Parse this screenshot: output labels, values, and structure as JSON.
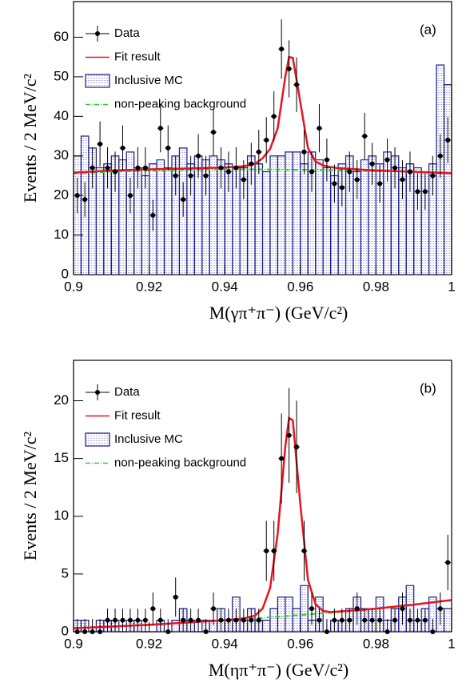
{
  "chart_data": [
    {
      "type": "mixed",
      "panel_label": "(a)",
      "xlabel": "M(γπ⁺π⁻) (GeV/c²)",
      "ylabel": "Events / 2 MeV/c²",
      "xlim": [
        0.9,
        1
      ],
      "ylim": [
        0,
        69
      ],
      "xticks": [
        0.9,
        0.92,
        0.94,
        0.96,
        0.98,
        1
      ],
      "yticks": [
        0,
        10,
        20,
        30,
        40,
        50,
        60
      ],
      "legend": "upper left",
      "data": {
        "name": "Data",
        "color": "#000000",
        "x": [
          0.901,
          0.903,
          0.905,
          0.907,
          0.909,
          0.911,
          0.913,
          0.915,
          0.917,
          0.919,
          0.921,
          0.923,
          0.925,
          0.927,
          0.929,
          0.931,
          0.933,
          0.935,
          0.937,
          0.939,
          0.941,
          0.943,
          0.945,
          0.947,
          0.949,
          0.951,
          0.953,
          0.955,
          0.957,
          0.959,
          0.961,
          0.963,
          0.965,
          0.967,
          0.969,
          0.971,
          0.973,
          0.975,
          0.977,
          0.979,
          0.981,
          0.983,
          0.985,
          0.987,
          0.989,
          0.991,
          0.993,
          0.995,
          0.997,
          0.999
        ],
        "values": [
          20,
          19,
          27,
          33,
          27,
          26,
          32,
          20,
          27,
          27,
          15,
          37,
          32,
          25,
          19,
          25,
          30,
          25,
          36,
          27,
          26,
          27,
          24,
          28,
          31,
          34,
          40,
          57,
          52,
          48,
          31,
          26,
          37,
          29,
          23,
          22,
          26,
          24,
          35,
          28,
          23,
          29,
          27,
          24,
          26,
          21,
          21,
          25,
          30,
          34
        ],
        "errors": [
          4.5,
          4.4,
          5.2,
          5.7,
          5.2,
          5.1,
          5.7,
          4.5,
          5.2,
          5.2,
          3.9,
          6.1,
          5.7,
          5,
          4.4,
          5,
          5.5,
          5,
          6,
          5.2,
          5.1,
          5.2,
          4.9,
          5.3,
          5.6,
          5.8,
          6.3,
          7.5,
          7.2,
          6.9,
          5.6,
          5.1,
          6.1,
          5.4,
          4.8,
          4.7,
          5.1,
          4.9,
          5.9,
          5.3,
          4.8,
          5.4,
          5.2,
          4.9,
          5.1,
          4.6,
          4.6,
          5,
          5.5,
          5.8
        ]
      },
      "fit": {
        "name": "Fit result",
        "color": "#e8141e",
        "x": [
          0.9,
          0.91,
          0.92,
          0.93,
          0.94,
          0.945,
          0.948,
          0.95,
          0.952,
          0.954,
          0.956,
          0.957,
          0.958,
          0.96,
          0.962,
          0.964,
          0.966,
          0.968,
          0.97,
          0.975,
          0.98,
          0.99,
          1
        ],
        "values": [
          25.8,
          26.3,
          26.6,
          26.8,
          27.1,
          27.4,
          28.0,
          29.4,
          31.8,
          37.0,
          50.0,
          55.0,
          54.8,
          43.5,
          32.0,
          28.6,
          27.6,
          27.2,
          26.9,
          26.6,
          26.3,
          26.0,
          25.6
        ]
      },
      "mc": {
        "name": "Inclusive MC",
        "color": "#1a1a8c",
        "bins": [
          0.9,
          0.902,
          0.904,
          0.906,
          0.908,
          0.91,
          0.912,
          0.914,
          0.916,
          0.918,
          0.92,
          0.922,
          0.924,
          0.926,
          0.928,
          0.93,
          0.932,
          0.934,
          0.936,
          0.938,
          0.94,
          0.942,
          0.944,
          0.946,
          0.948,
          0.95,
          0.952,
          0.954,
          0.956,
          0.958,
          0.96,
          0.962,
          0.964,
          0.966,
          0.968,
          0.97,
          0.972,
          0.974,
          0.976,
          0.978,
          0.98,
          0.982,
          0.984,
          0.986,
          0.988,
          0.99,
          0.992,
          0.994,
          0.996,
          0.998,
          1
        ],
        "values": [
          30,
          35,
          32,
          27,
          28,
          30,
          29,
          31,
          27,
          25,
          28,
          29,
          27,
          30,
          32,
          28,
          30,
          29,
          30,
          29,
          28,
          27,
          27,
          30,
          28,
          26,
          30,
          30,
          31,
          31,
          28,
          31,
          29,
          27,
          25,
          28,
          30,
          26,
          29,
          30,
          28,
          31,
          30,
          27,
          28,
          27,
          26,
          28,
          53,
          48
        ]
      },
      "background": {
        "name": "non-peaking background",
        "color": "#33cc33",
        "x": [
          0.9,
          0.91,
          0.92,
          0.93,
          0.94,
          0.95,
          0.96,
          0.97,
          0.98,
          0.99,
          1
        ],
        "values": [
          25.6,
          26.0,
          26.3,
          26.5,
          26.6,
          26.6,
          26.5,
          26.4,
          26.2,
          26.0,
          25.8
        ]
      }
    },
    {
      "type": "mixed",
      "panel_label": "(b)",
      "xlabel": "M(ηπ⁺π⁻) (GeV/c²)",
      "ylabel": "Events / 2 MeV/c²",
      "xlim": [
        0.9,
        1
      ],
      "ylim": [
        0,
        23.5
      ],
      "xticks": [
        0.9,
        0.92,
        0.94,
        0.96,
        0.98,
        1
      ],
      "yticks": [
        0,
        5,
        10,
        15,
        20
      ],
      "legend": "upper left",
      "data": {
        "name": "Data",
        "color": "#000000",
        "x": [
          0.901,
          0.903,
          0.905,
          0.907,
          0.909,
          0.911,
          0.913,
          0.915,
          0.917,
          0.919,
          0.921,
          0.923,
          0.925,
          0.927,
          0.929,
          0.931,
          0.933,
          0.935,
          0.937,
          0.939,
          0.941,
          0.943,
          0.945,
          0.947,
          0.949,
          0.951,
          0.953,
          0.955,
          0.957,
          0.959,
          0.961,
          0.963,
          0.965,
          0.967,
          0.969,
          0.971,
          0.973,
          0.975,
          0.977,
          0.979,
          0.981,
          0.983,
          0.985,
          0.987,
          0.989,
          0.991,
          0.993,
          0.995,
          0.997,
          0.999
        ],
        "values": [
          0,
          0,
          0,
          0,
          1,
          1,
          1,
          1,
          1,
          1,
          2,
          1,
          0,
          3,
          1,
          1,
          1,
          0,
          2,
          1,
          1,
          1,
          1,
          1,
          1,
          7,
          7,
          15,
          17,
          16,
          7,
          2,
          1,
          0,
          1,
          1,
          1,
          2,
          1,
          1,
          1,
          0,
          1,
          2,
          1,
          1,
          1,
          0,
          2,
          6
        ],
        "errors": [
          1.1,
          1.1,
          1.1,
          1.1,
          1,
          1,
          1,
          1,
          1,
          1,
          1.4,
          1,
          1.1,
          1.7,
          1,
          1,
          1,
          1.1,
          1.4,
          1,
          1,
          1,
          1,
          1,
          1,
          2.6,
          2.6,
          3.9,
          4.1,
          4,
          2.6,
          1.4,
          1,
          1.1,
          1,
          1,
          1,
          1.4,
          1,
          1,
          1,
          1.1,
          1,
          1.4,
          1,
          1,
          1,
          1.1,
          1.4,
          2.4
        ]
      },
      "fit": {
        "name": "Fit result",
        "color": "#e8141e",
        "x": [
          0.9,
          0.91,
          0.92,
          0.93,
          0.94,
          0.945,
          0.948,
          0.95,
          0.952,
          0.954,
          0.956,
          0.957,
          0.958,
          0.96,
          0.962,
          0.964,
          0.966,
          0.968,
          0.97,
          0.975,
          0.98,
          0.99,
          1
        ],
        "values": [
          0.3,
          0.45,
          0.6,
          0.8,
          1.0,
          1.15,
          1.4,
          2.0,
          3.8,
          8.5,
          16.0,
          18.5,
          18.3,
          11.0,
          4.5,
          2.4,
          1.8,
          1.7,
          1.75,
          1.85,
          2.0,
          2.35,
          2.75
        ]
      },
      "mc": {
        "name": "Inclusive MC",
        "color": "#1a1a8c",
        "bins": [
          0.9,
          0.902,
          0.904,
          0.906,
          0.908,
          0.91,
          0.912,
          0.914,
          0.916,
          0.918,
          0.92,
          0.922,
          0.924,
          0.926,
          0.928,
          0.93,
          0.932,
          0.934,
          0.936,
          0.938,
          0.94,
          0.942,
          0.944,
          0.946,
          0.948,
          0.95,
          0.952,
          0.954,
          0.956,
          0.958,
          0.96,
          0.962,
          0.964,
          0.966,
          0.968,
          0.97,
          0.972,
          0.974,
          0.976,
          0.978,
          0.98,
          0.982,
          0.984,
          0.986,
          0.988,
          0.99,
          0.992,
          0.994,
          0.996,
          0.998,
          1
        ],
        "values": [
          1,
          1,
          0,
          1,
          1,
          1,
          0,
          1,
          1,
          0,
          0,
          1,
          0,
          1,
          2,
          1,
          0,
          1,
          1,
          2,
          1,
          3,
          1,
          2,
          1,
          1,
          2,
          3,
          3,
          2,
          4,
          1,
          3,
          0,
          1,
          1,
          2,
          3,
          2,
          2,
          3,
          1,
          2,
          3,
          4,
          1,
          2,
          3,
          2,
          2
        ]
      },
      "background": {
        "name": "non-peaking background",
        "color": "#33cc33",
        "x": [
          0.9,
          0.91,
          0.92,
          0.93,
          0.94,
          0.95,
          0.96,
          0.97,
          0.98,
          0.99,
          1
        ],
        "values": [
          0.3,
          0.45,
          0.6,
          0.8,
          1.0,
          1.2,
          1.45,
          1.7,
          2.0,
          2.35,
          2.75
        ]
      }
    }
  ]
}
